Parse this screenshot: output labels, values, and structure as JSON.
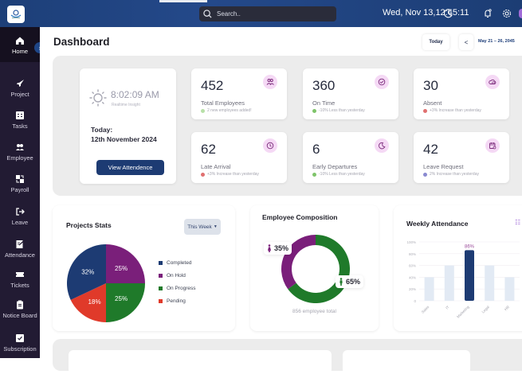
{
  "header": {
    "search_placeholder": "Search..",
    "datetime": "Wed, Nov 13,12:45:11",
    "icons": [
      "moon-icon",
      "bell-icon",
      "gear-icon",
      "user-avatar"
    ]
  },
  "sidebar": {
    "items": [
      {
        "label": "Home",
        "icon": "home-icon",
        "active": true
      },
      {
        "label": "Project",
        "icon": "rocket-icon"
      },
      {
        "label": "Tasks",
        "icon": "tasks-icon"
      },
      {
        "label": "Employee",
        "icon": "people-icon"
      },
      {
        "label": "Payroll",
        "icon": "payroll-icon"
      },
      {
        "label": "Leave",
        "icon": "leave-icon"
      },
      {
        "label": "Attendance",
        "icon": "attendance-icon"
      },
      {
        "label": "Tickets",
        "icon": "ticket-icon"
      },
      {
        "label": "Notice Board",
        "icon": "notice-icon"
      },
      {
        "label": "Subscription",
        "icon": "subscription-icon"
      }
    ]
  },
  "page": {
    "title": "Dashboard",
    "today_button": "Today",
    "prev_button": "<",
    "date_range": "May 21 – 26, 2045"
  },
  "clock": {
    "time": "8:02:09 AM",
    "subtitle": "Realtime Insight",
    "today_label": "Today:",
    "today_date": "12th November 2024",
    "view_button": "View Attendence"
  },
  "stats": [
    {
      "value": "452",
      "label": "Total Employees",
      "note": "2 new employees added!",
      "trend": "up",
      "icon": "users-icon"
    },
    {
      "value": "360",
      "label": "On Time",
      "note": "-10% Less than yesterday",
      "trend": "up",
      "icon": "clock-check-icon"
    },
    {
      "value": "30",
      "label": "Absent",
      "note": "+3% Increase than yesterday",
      "trend": "down",
      "icon": "cloud-clock-icon"
    },
    {
      "value": "62",
      "label": "Late Arrival",
      "note": "+3% Increase than yesterday",
      "trend": "down",
      "icon": "clock-late-icon"
    },
    {
      "value": "6",
      "label": "Early Departures",
      "note": "-10% Less than yesterday",
      "trend": "up",
      "icon": "moon-icon"
    },
    {
      "value": "42",
      "label": "Leave Request",
      "note": "2% Increase than yesterday",
      "trend": "neutral",
      "icon": "calendar-icon"
    }
  ],
  "colors": {
    "navy": "#1d3b73",
    "purple": "#7a1f7a",
    "green": "#1f7a2a",
    "red": "#e03a2a",
    "bar_light": "#e2eaf4",
    "trend_up": "#7fc46a",
    "trend_down": "#e07070",
    "trend_neutral": "#8a8ad0"
  },
  "projects": {
    "title": "Projects Stats",
    "filter": "This Week"
  },
  "composition": {
    "title": "Employee Composition",
    "female_pct": "35%",
    "male_pct": "65%",
    "total": "856 employee total"
  },
  "weekly": {
    "title": "Weekly Attendance"
  },
  "chart_data": [
    {
      "type": "pie",
      "title": "Projects Stats",
      "categories": [
        "Completed",
        "On Hold",
        "On Progress",
        "Pending"
      ],
      "values": [
        32,
        25,
        25,
        18
      ],
      "labels": [
        "32%",
        "25%",
        "25%",
        "18%"
      ],
      "legend": "right"
    },
    {
      "type": "pie",
      "title": "Employee Composition",
      "donut": true,
      "categories": [
        "Female",
        "Male"
      ],
      "values": [
        35,
        65
      ],
      "labels": [
        "35%",
        "65%"
      ]
    },
    {
      "type": "bar",
      "title": "Weekly Attendance",
      "categories": [
        "Sales",
        "IT",
        "Marketing",
        "Legal",
        "HR"
      ],
      "values": [
        40,
        60,
        86,
        60,
        40
      ],
      "highlight": 2,
      "highlight_label": "86%",
      "yticks": [
        "0",
        "20%",
        "40%",
        "60%",
        "80%",
        "100%"
      ],
      "ylim": [
        0,
        100
      ],
      "grid": true
    }
  ]
}
